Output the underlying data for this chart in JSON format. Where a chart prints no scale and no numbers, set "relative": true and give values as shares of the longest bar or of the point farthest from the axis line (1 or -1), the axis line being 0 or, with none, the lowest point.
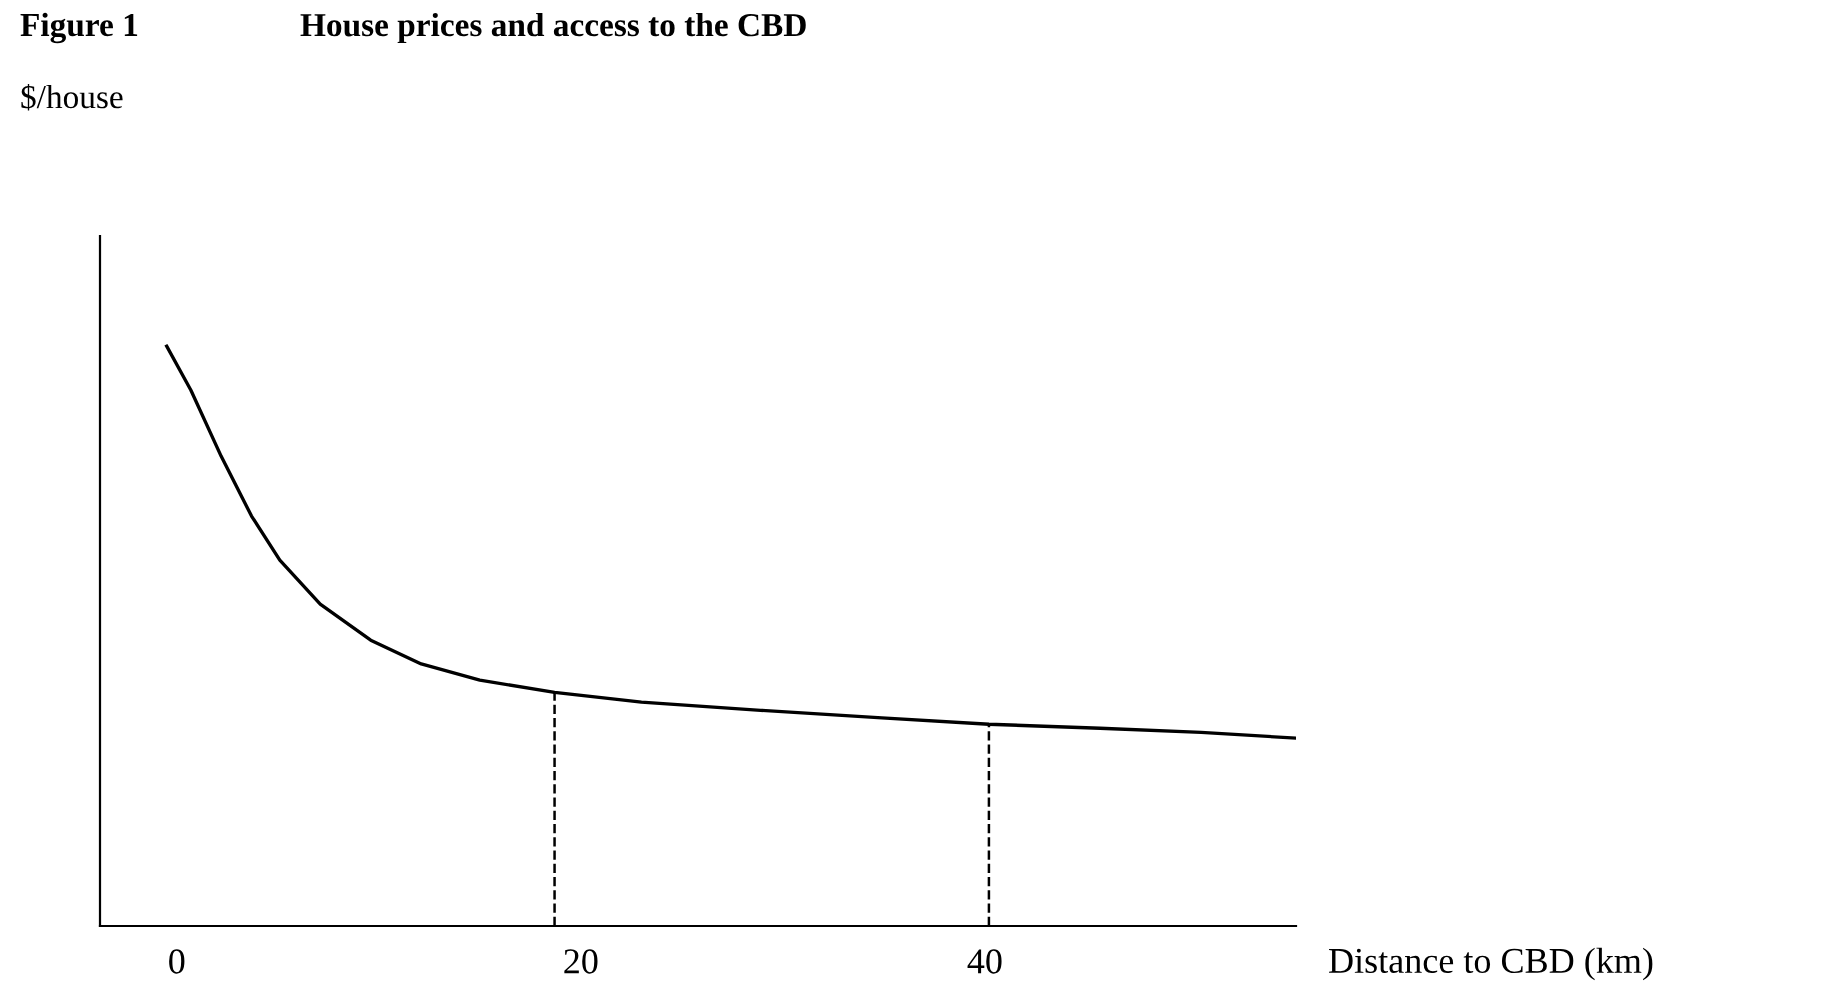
{
  "chart_data": {
    "type": "line",
    "title": "Figure 1",
    "subtitle": "House prices and access to the CBD",
    "annotations": [
      "$/house"
    ],
    "xlabel": "Distance to CBD (km)",
    "relative": true,
    "tick_labels": "x",
    "xlim": [
      -3.8,
      55.4
    ],
    "xticks": [
      0,
      20,
      40
    ],
    "grid": false,
    "legend": false,
    "marker": "none",
    "line_style": "solid",
    "series": [
      {
        "color": "#000000",
        "x": [
          -0.5,
          0.7,
          2.2,
          3.7,
          5.1,
          7.1,
          9.6,
          12.1,
          15.0,
          18.7,
          23.0,
          28.9,
          34.9,
          40.2,
          45.7,
          50.7,
          55.4
        ],
        "values": [
          1.0,
          0.924,
          0.81,
          0.707,
          0.631,
          0.555,
          0.493,
          0.452,
          0.424,
          0.403,
          0.386,
          0.372,
          0.359,
          0.348,
          0.341,
          0.334,
          0.324
        ]
      }
    ],
    "ref_lines": [
      {
        "axis": "x",
        "value": 18.7,
        "line_style": "dashed",
        "color": "#000000"
      },
      {
        "axis": "x",
        "value": 40.2,
        "line_style": "dashed",
        "color": "#000000"
      }
    ]
  }
}
